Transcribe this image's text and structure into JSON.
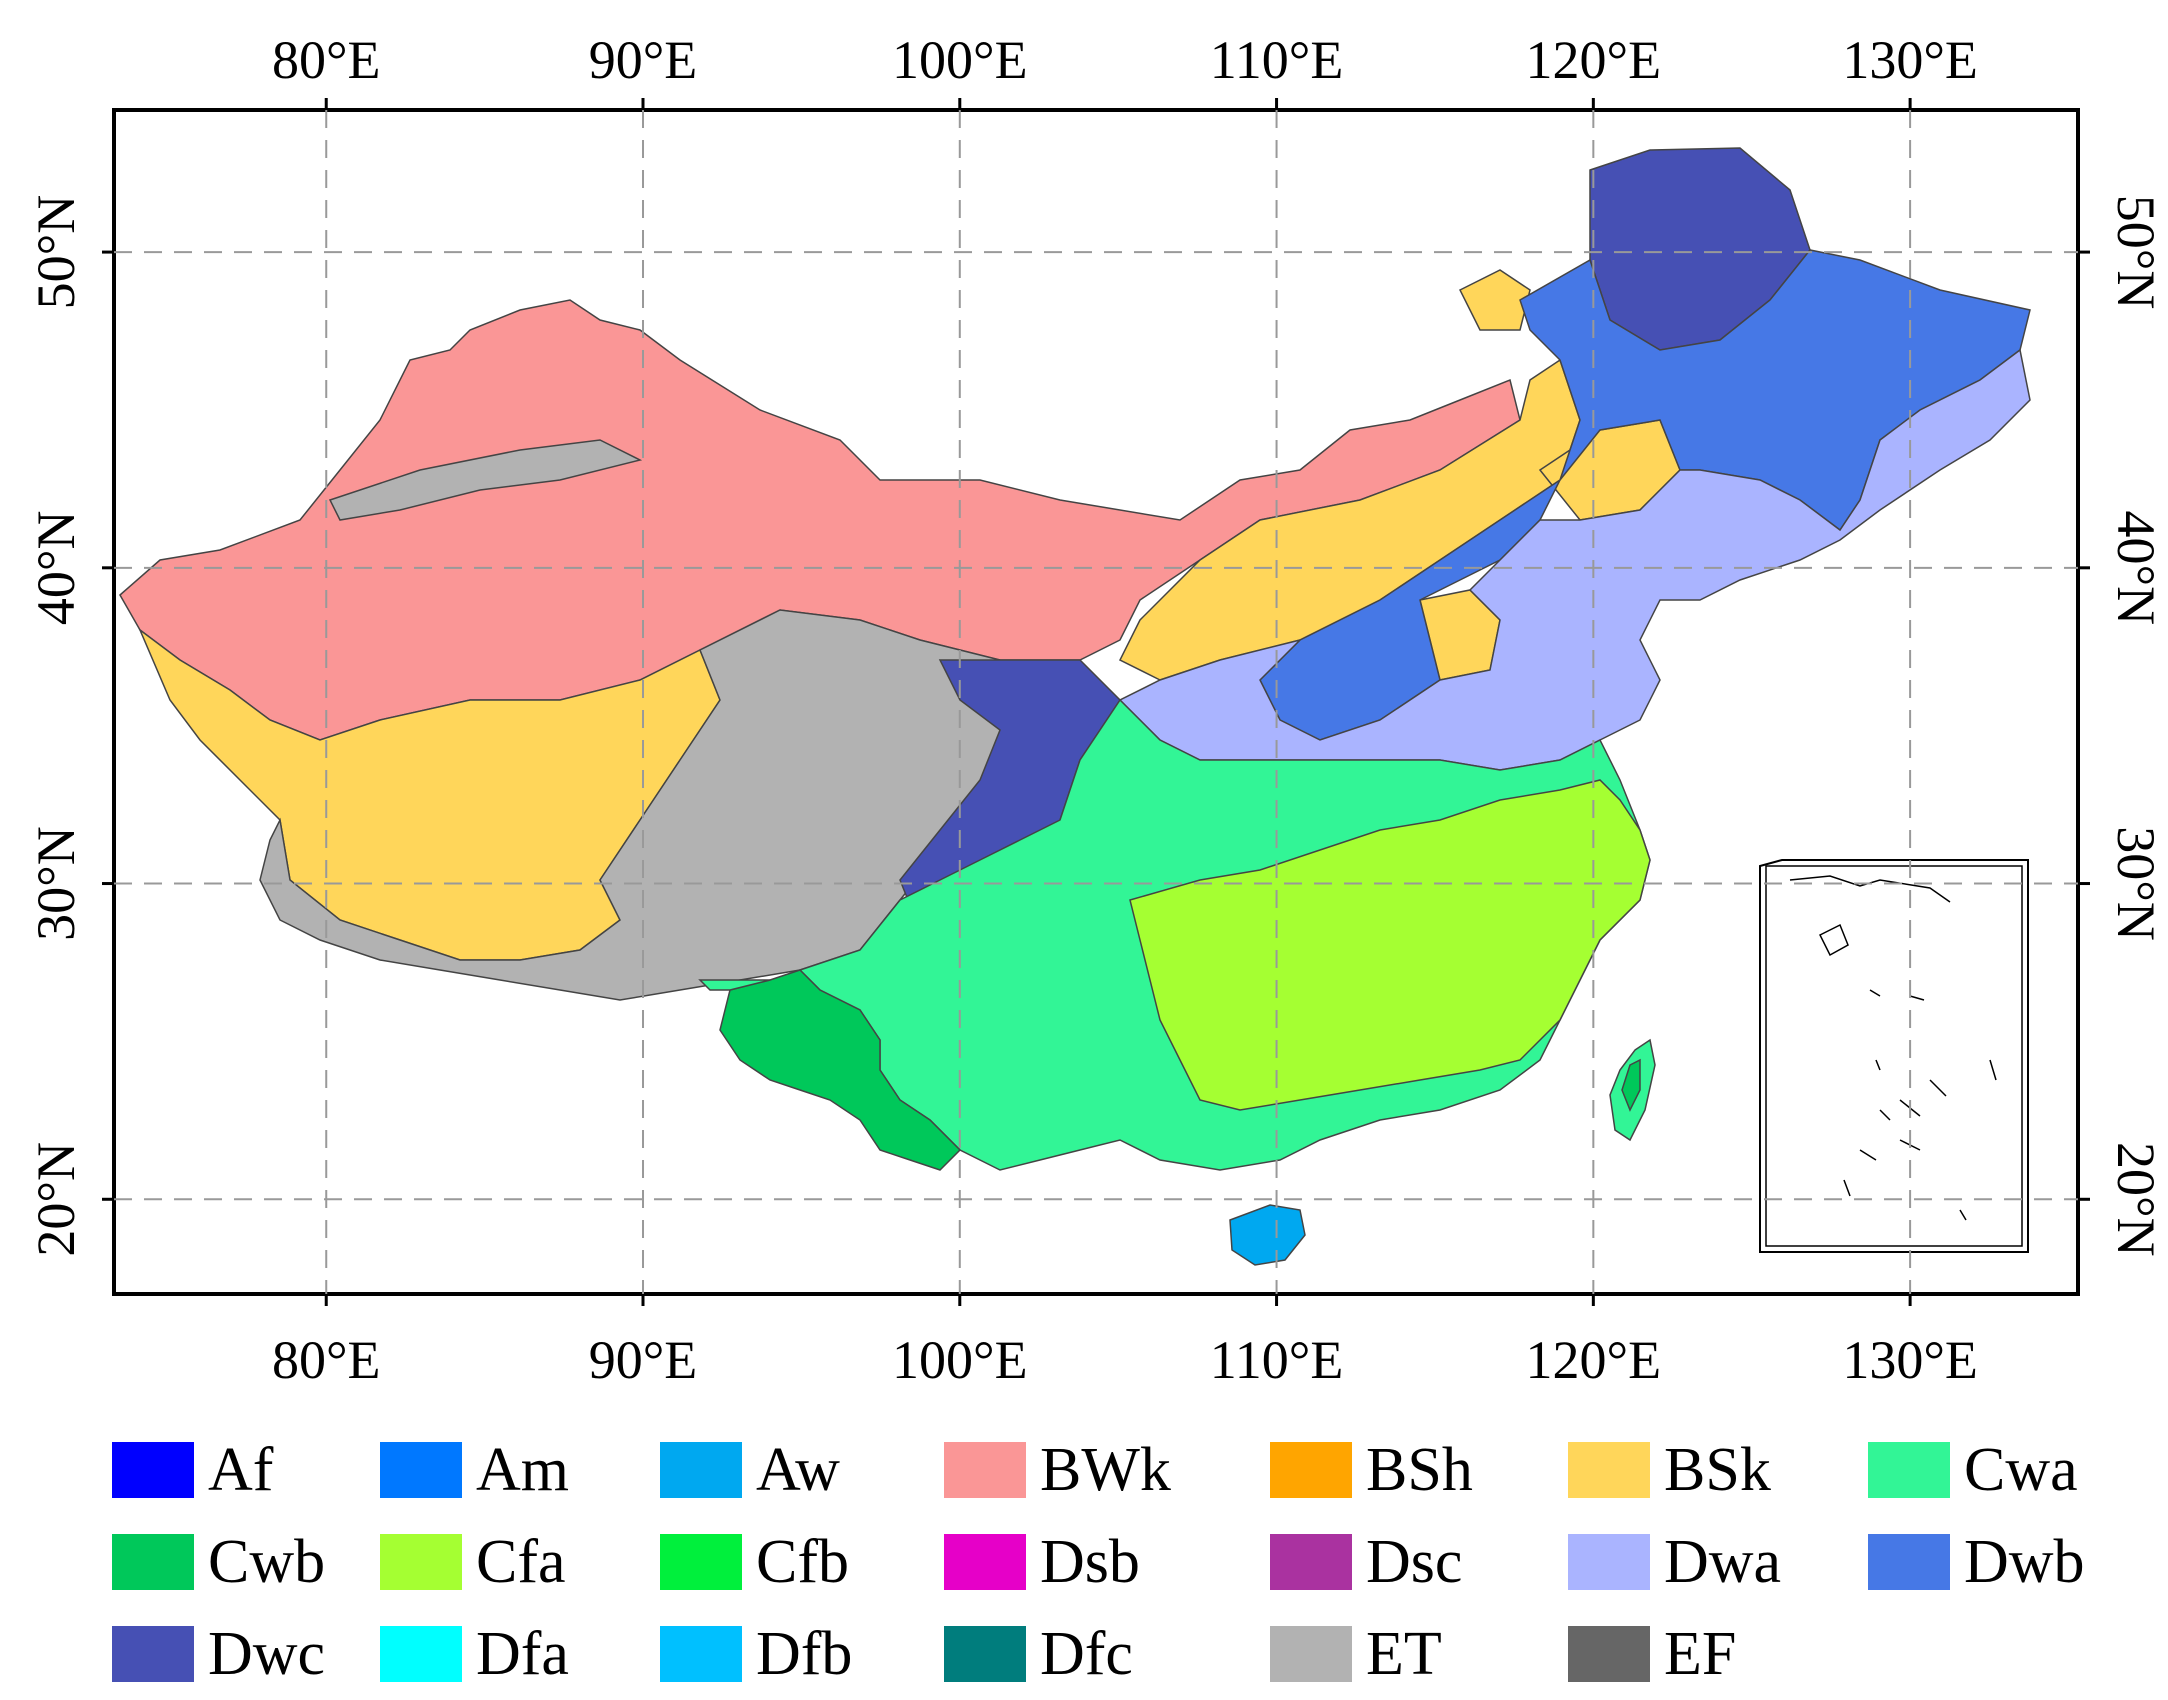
{
  "map": {
    "longitude_labels": [
      "80°E",
      "90°E",
      "100°E",
      "110°E",
      "120°E",
      "130°E"
    ],
    "latitude_labels": [
      "50°N",
      "40°N",
      "30°N",
      "20°N"
    ],
    "extent": {
      "lon": [
        73.3,
        135.3
      ],
      "lat": [
        17,
        54.5
      ]
    },
    "grid": true
  },
  "legend": [
    {
      "code": "Af",
      "color": "#0000ff"
    },
    {
      "code": "Am",
      "color": "#0078ff"
    },
    {
      "code": "Aw",
      "color": "#00a8f0"
    },
    {
      "code": "BWk",
      "color": "#fa9696"
    },
    {
      "code": "BSh",
      "color": "#ffa500"
    },
    {
      "code": "BSk",
      "color": "#ffd65a"
    },
    {
      "code": "Cwa",
      "color": "#32f596"
    },
    {
      "code": "Cwb",
      "color": "#00c85a"
    },
    {
      "code": "Cfa",
      "color": "#a5ff32"
    },
    {
      "code": "Cfb",
      "color": "#00f03c"
    },
    {
      "code": "Dsb",
      "color": "#e600c8"
    },
    {
      "code": "Dsc",
      "color": "#aa32a0"
    },
    {
      "code": "Dwa",
      "color": "#aab4ff"
    },
    {
      "code": "Dwb",
      "color": "#4678e6"
    },
    {
      "code": "Dwc",
      "color": "#4650b4"
    },
    {
      "code": "Dfa",
      "color": "#00ffff"
    },
    {
      "code": "Dfb",
      "color": "#00c0ff"
    },
    {
      "code": "Dfc",
      "color": "#007d7d"
    },
    {
      "code": "ET",
      "color": "#b2b2b2"
    },
    {
      "code": "EF",
      "color": "#666666"
    }
  ]
}
